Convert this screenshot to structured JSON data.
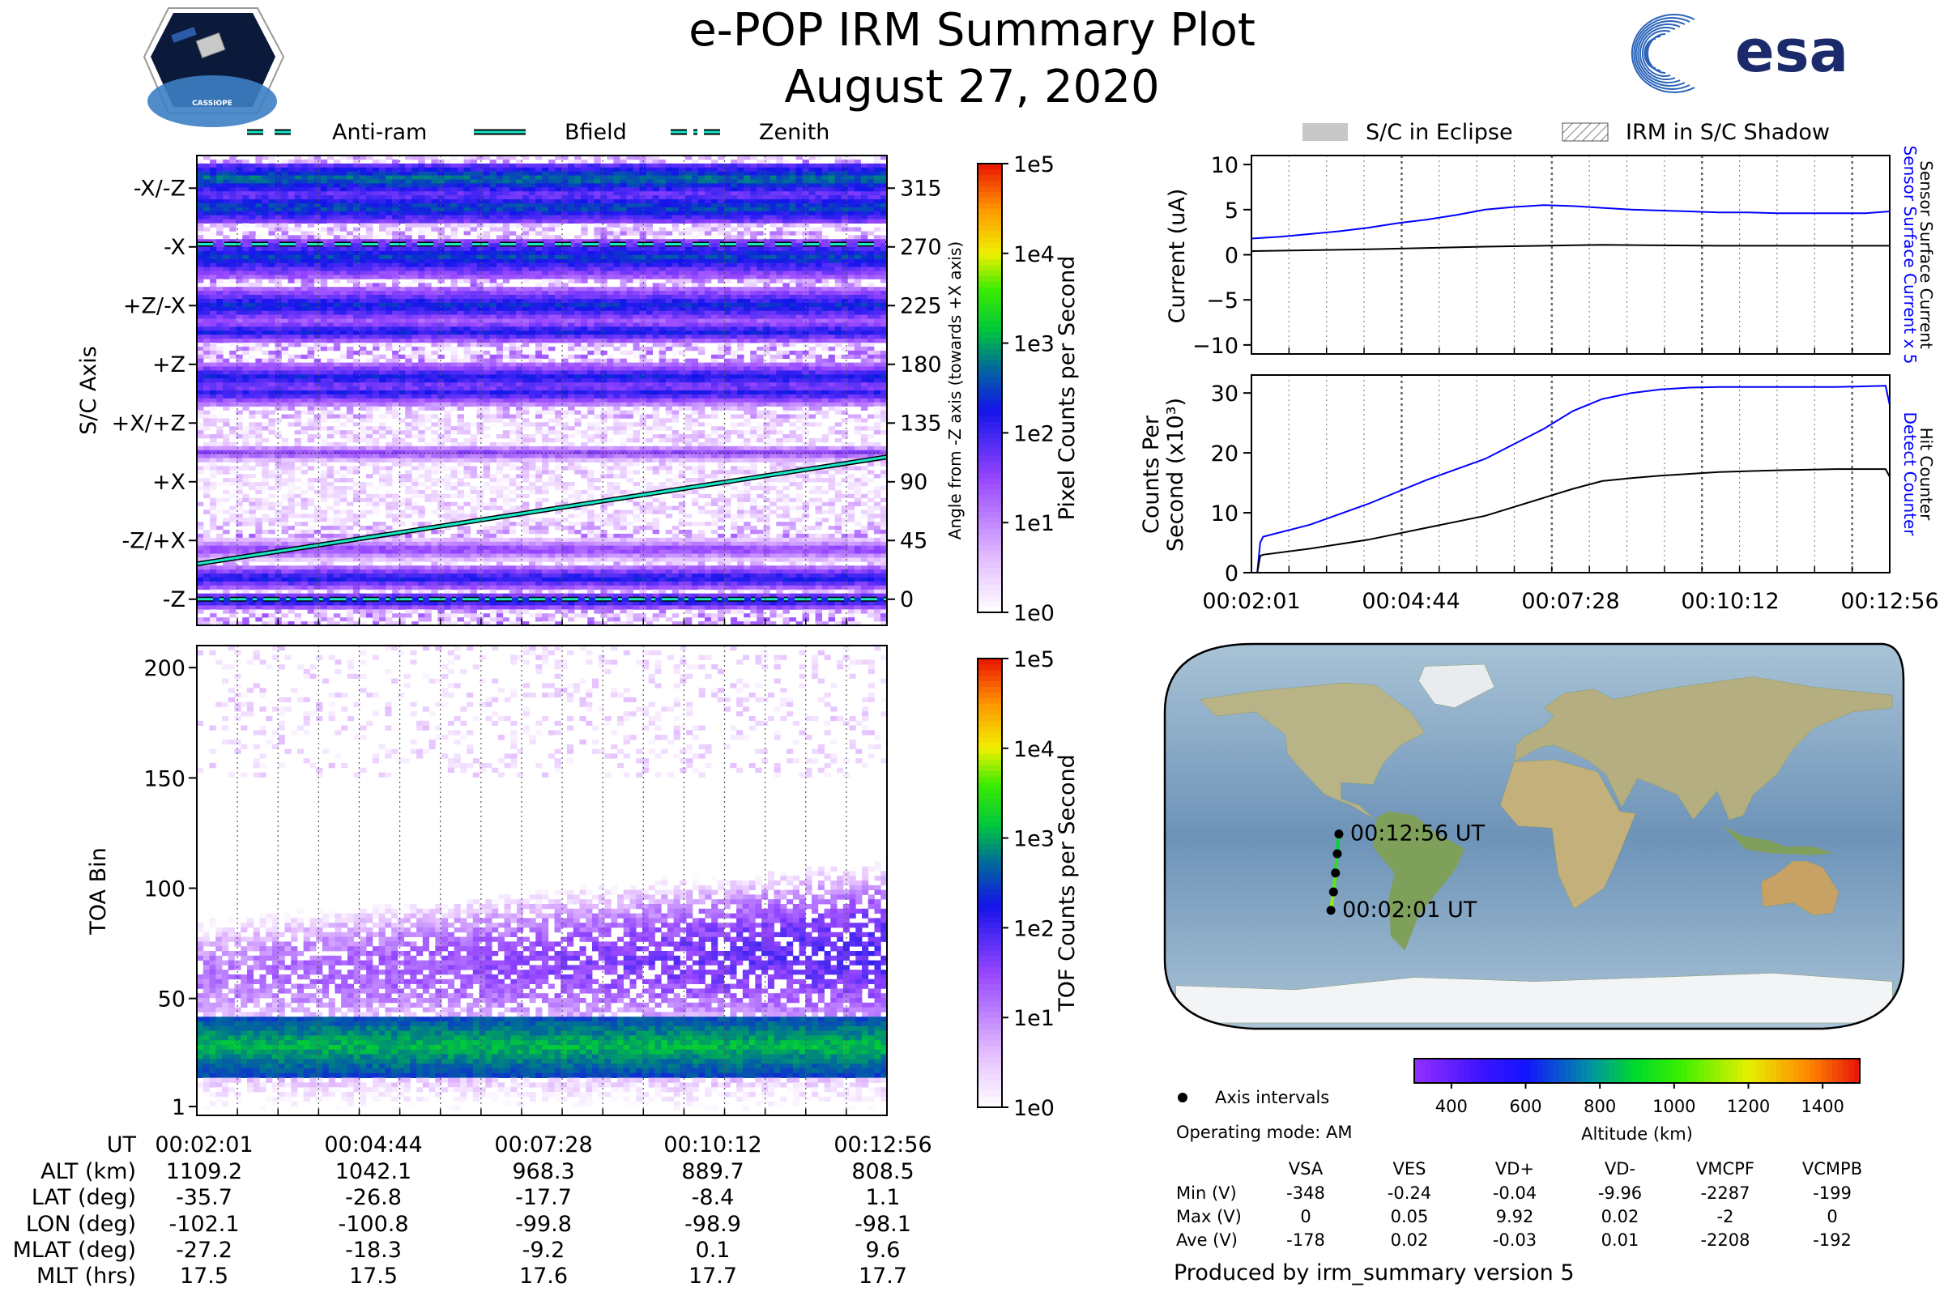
{
  "header": {
    "title": "e-POP IRM Summary Plot",
    "date": "August 27, 2020",
    "mission_logo_text": "CASSIOPE",
    "agency_logo_text": "esa"
  },
  "legend_top": {
    "items": [
      {
        "label": "Anti-ram",
        "style": "dashed"
      },
      {
        "label": "Bfield",
        "style": "solid"
      },
      {
        "label": "Zenith",
        "style": "dashdot"
      }
    ]
  },
  "legend_right": {
    "items": [
      {
        "label": "S/C in Eclipse",
        "style": "gray-fill"
      },
      {
        "label": "IRM in S/C Shadow",
        "style": "hatched"
      }
    ]
  },
  "chart_data": [
    {
      "id": "pixel",
      "type": "heatmap",
      "ylabel": "S/C Axis",
      "ylabel_right": "Angle from -Z axis (towards +X axis)",
      "y_tick_labels": [
        "-X/-Z",
        "-X",
        "+Z/-X",
        "+Z",
        "+X/+Z",
        "+X",
        "-Z/+X",
        "-Z"
      ],
      "y_tick_values": [
        315,
        270,
        225,
        180,
        135,
        90,
        45,
        0
      ],
      "y_right_tick_labels": [
        "315",
        "270",
        "225",
        "180",
        "135",
        "90",
        "45",
        "0"
      ],
      "ylim": [
        -20,
        340
      ],
      "bands": [
        {
          "center": 322,
          "half": 6,
          "level": 2.8
        },
        {
          "center": 300,
          "half": 6,
          "level": 2.6
        },
        {
          "center": 262,
          "half": 7,
          "level": 2.5
        },
        {
          "center": 225,
          "half": 6,
          "level": 2.4
        },
        {
          "center": 205,
          "half": 4,
          "level": 2.3
        },
        {
          "center": 170,
          "half": 5,
          "level": 2.3
        },
        {
          "center": 158,
          "half": 4,
          "level": 2.2
        },
        {
          "center": 112,
          "half": 3,
          "level": 1.6
        },
        {
          "center": 38,
          "half": 4,
          "level": 1.6
        },
        {
          "center": 16,
          "half": 4,
          "level": 2.3
        },
        {
          "center": -1,
          "half": 3,
          "level": 2.4
        }
      ],
      "lines": [
        {
          "name": "Anti-ram",
          "x": [
            0,
            10.92
          ],
          "y": [
            272,
            272
          ]
        },
        {
          "name": "Bfield",
          "x": [
            0,
            10.92
          ],
          "y": [
            27,
            109
          ]
        },
        {
          "name": "Zenith",
          "x": [
            0,
            10.92
          ],
          "y": [
            0,
            0
          ]
        }
      ],
      "colorbar": {
        "label": "Pixel Counts per Second",
        "tick_labels": [
          "1e0",
          "1e1",
          "1e2",
          "1e3",
          "1e4",
          "1e5"
        ],
        "range": [
          0,
          5
        ]
      }
    },
    {
      "id": "tof",
      "type": "heatmap",
      "ylabel": "TOA Bin",
      "y_tick_labels": [
        "1",
        "50",
        "100",
        "150",
        "200"
      ],
      "y_tick_values": [
        1,
        50,
        100,
        150,
        200
      ],
      "ylim": [
        -3,
        210
      ],
      "x_tick_labels": [
        "00:02:01",
        "00:04:44",
        "00:07:28",
        "00:10:12",
        "00:12:56"
      ],
      "xlim_min": [
        0,
        10.92
      ],
      "core_band": {
        "bin_range": [
          15,
          42
        ],
        "level": 2.8
      },
      "upper_band": {
        "center_start": 60,
        "center_end": 72,
        "level_start": 1.1,
        "level_end": 1.9
      },
      "colorbar": {
        "label": "TOF Counts per Second",
        "tick_labels": [
          "1e0",
          "1e1",
          "1e2",
          "1e3",
          "1e4",
          "1e5"
        ],
        "range": [
          0,
          5
        ]
      }
    },
    {
      "id": "current",
      "type": "line",
      "ylabel": "Current (uA)",
      "ylim": [
        -11,
        11
      ],
      "y_tick_labels": [
        "10",
        "5",
        "0",
        "−5",
        "−10"
      ],
      "y_tick_values": [
        10,
        5,
        0,
        -5,
        -10
      ],
      "right_label_1": "Sensor Surface Current x 5",
      "right_label_2": "Sensor Surface Current",
      "series": [
        {
          "name": "Sensor Surface Current x 5",
          "color": "#0000ff",
          "x": [
            0,
            0.5,
            1,
            1.5,
            2,
            2.5,
            3,
            3.5,
            4,
            4.5,
            5,
            5.5,
            6,
            6.5,
            7,
            7.5,
            8,
            8.5,
            9,
            9.5,
            10,
            10.5,
            10.92
          ],
          "y": [
            1.8,
            2.0,
            2.3,
            2.6,
            3.0,
            3.5,
            3.9,
            4.4,
            5.0,
            5.3,
            5.5,
            5.4,
            5.2,
            5.0,
            4.9,
            4.8,
            4.7,
            4.7,
            4.6,
            4.6,
            4.6,
            4.6,
            4.8
          ]
        },
        {
          "name": "Sensor Surface Current",
          "color": "#000000",
          "x": [
            0,
            2,
            4,
            6,
            8,
            10.92
          ],
          "y": [
            0.4,
            0.6,
            0.9,
            1.1,
            1.0,
            1.0
          ]
        }
      ]
    },
    {
      "id": "counts",
      "type": "line",
      "ylabel": "Counts Per Second (x10³)",
      "ylabel_line1": "Counts Per",
      "ylabel_line2": "Second (x10³)",
      "ylim": [
        0,
        33
      ],
      "y_tick_labels": [
        "0",
        "10",
        "20",
        "30"
      ],
      "y_tick_values": [
        0,
        10,
        20,
        30
      ],
      "x_tick_labels": [
        "00:02:01",
        "00:04:44",
        "00:07:28",
        "00:10:12",
        "00:12:56"
      ],
      "right_label_1": "Detect Counter",
      "right_label_2": "Hit Counter",
      "series": [
        {
          "name": "Detect Counter",
          "color": "#0000ff",
          "x": [
            0,
            0.1,
            0.15,
            0.2,
            1,
            2,
            3,
            4,
            5,
            5.5,
            6,
            6.5,
            7,
            7.5,
            8,
            9,
            10,
            10.85,
            10.92
          ],
          "y": [
            0,
            0,
            5,
            6,
            8,
            11.5,
            15.5,
            19,
            24,
            27,
            29,
            30,
            30.6,
            30.9,
            31,
            31,
            31,
            31.2,
            28
          ]
        },
        {
          "name": "Hit Counter",
          "color": "#000000",
          "x": [
            0,
            0.1,
            0.15,
            0.2,
            1,
            2,
            3,
            4,
            5,
            5.5,
            6,
            6.5,
            7,
            8,
            9,
            10,
            10.85,
            10.92
          ],
          "y": [
            0,
            0,
            2.8,
            3,
            4,
            5.5,
            7.5,
            9.5,
            12.5,
            14,
            15.3,
            15.8,
            16.2,
            16.8,
            17.1,
            17.3,
            17.3,
            16
          ]
        }
      ]
    }
  ],
  "map": {
    "annotation_start": "00:02:01 UT",
    "annotation_end": "00:12:56 UT",
    "track_points_lonlat": [
      [
        -102.1,
        -35.7
      ],
      [
        -100.8,
        -26.8
      ],
      [
        -99.8,
        -17.7
      ],
      [
        -98.9,
        -8.4
      ],
      [
        -98.1,
        1.1
      ]
    ],
    "colorbar_label": "Altitude (km)",
    "colorbar_ticks": [
      "400",
      "600",
      "800",
      "1000",
      "1200",
      "1400"
    ],
    "colorbar_tick_values": [
      400,
      600,
      800,
      1000,
      1200,
      1400
    ],
    "colorbar_range": [
      300,
      1500
    ]
  },
  "ephemeris": {
    "labels": [
      "UT",
      "ALT (km)",
      "LAT (deg)",
      "LON (deg)",
      "MLAT (deg)",
      "MLT (hrs)"
    ],
    "columns": [
      [
        "00:02:01",
        "1109.2",
        "-35.7",
        "-102.1",
        "-27.2",
        "17.5"
      ],
      [
        "00:04:44",
        "1042.1",
        "-26.8",
        "-100.8",
        "-18.3",
        "17.5"
      ],
      [
        "00:07:28",
        "968.3",
        "-17.7",
        "-99.8",
        "-9.2",
        "17.6"
      ],
      [
        "00:10:12",
        "889.7",
        "-8.4",
        "-98.9",
        "0.1",
        "17.7"
      ],
      [
        "00:12:56",
        "808.5",
        "1.1",
        "-98.1",
        "9.6",
        "17.7"
      ]
    ]
  },
  "info": {
    "axis_intervals_label": "Axis intervals",
    "operating_mode": "Operating mode: AM",
    "produced_by": "Produced by irm_summary version 5"
  },
  "voltage_table": {
    "headers": [
      "VSA",
      "VES",
      "VD+",
      "VD-",
      "VMCPF",
      "VCMPB"
    ],
    "rows": [
      {
        "label": "Min (V)",
        "values": [
          "-348",
          "-0.24",
          "-0.04",
          "-9.96",
          "-2287",
          "-199"
        ]
      },
      {
        "label": "Max (V)",
        "values": [
          "0",
          "0.05",
          "9.92",
          "0.02",
          "-2",
          "0"
        ]
      },
      {
        "label": "Ave (V)",
        "values": [
          "-178",
          "0.02",
          "-0.03",
          "0.01",
          "-2208",
          "-192"
        ]
      }
    ]
  }
}
